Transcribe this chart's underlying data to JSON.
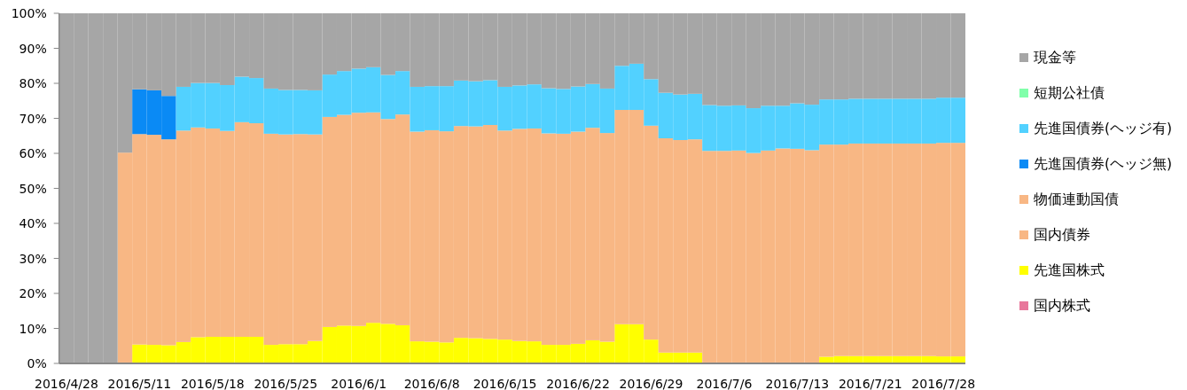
{
  "chart_data": {
    "type": "bar",
    "stacked": true,
    "legend": "right",
    "categories": [
      "2016/4/28",
      null,
      null,
      null,
      null,
      "2016/5/11",
      null,
      null,
      null,
      null,
      "2016/5/18",
      null,
      null,
      null,
      null,
      "2016/5/25",
      null,
      null,
      null,
      null,
      "2016/6/1",
      null,
      null,
      null,
      null,
      "2016/6/8",
      null,
      null,
      null,
      null,
      "2016/6/15",
      null,
      null,
      null,
      null,
      "2016/6/22",
      null,
      null,
      null,
      null,
      "2016/6/29",
      null,
      null,
      null,
      null,
      "2016/7/6",
      null,
      null,
      null,
      null,
      "2016/7/13",
      null,
      null,
      null,
      null,
      "2016/7/21",
      null,
      null,
      null,
      null,
      "2016/7/28",
      null
    ],
    "ylim": [
      0,
      100
    ],
    "yticks": [
      {
        "value": 0,
        "label": "0%"
      },
      {
        "value": 10,
        "label": "10%"
      },
      {
        "value": 20,
        "label": "20%"
      },
      {
        "value": 30,
        "label": "30%"
      },
      {
        "value": 40,
        "label": "40%"
      },
      {
        "value": 50,
        "label": "50%"
      },
      {
        "value": 60,
        "label": "60%"
      },
      {
        "value": 70,
        "label": "70%"
      },
      {
        "value": 80,
        "label": "80%"
      },
      {
        "value": 90,
        "label": "90%"
      },
      {
        "value": 100,
        "label": "100%"
      }
    ],
    "series": [
      {
        "name": "国内株式",
        "color": "#e8779b",
        "values": [
          0,
          0,
          0,
          0,
          0,
          0,
          0,
          0,
          0,
          0,
          0,
          0,
          0,
          0,
          0,
          0,
          0,
          0,
          0,
          0,
          0,
          0,
          0,
          0,
          0,
          0,
          0,
          0,
          0,
          0,
          0,
          0,
          0,
          0,
          0,
          0,
          0,
          0,
          0,
          0,
          0,
          0,
          0,
          0,
          0,
          0,
          0,
          0,
          0,
          0,
          0,
          0,
          0,
          0,
          0,
          0,
          0,
          0,
          0,
          0,
          0,
          0
        ]
      },
      {
        "name": "先進国株式",
        "color": "#ffff00",
        "values": [
          0,
          0,
          0,
          0,
          0,
          5.4,
          5.3,
          5.2,
          6.1,
          7.5,
          7.6,
          7.6,
          7.6,
          7.6,
          5.3,
          5.5,
          5.5,
          6.4,
          10.4,
          10.8,
          10.7,
          11.6,
          11.3,
          10.9,
          6.3,
          6.2,
          6.0,
          7.3,
          7.2,
          7.0,
          6.8,
          6.4,
          6.3,
          5.3,
          5.3,
          5.6,
          6.6,
          6.2,
          11.2,
          11.2,
          6.8,
          3.1,
          3.1,
          3.1,
          0,
          0,
          0,
          0,
          0,
          0,
          0,
          0,
          1.9,
          2.1,
          2.1,
          2.1,
          2.1,
          2.1,
          2.1,
          2.1,
          2.0,
          2.0
        ]
      },
      {
        "name": "国内債券",
        "color": "#f8b784",
        "values": [
          0,
          0,
          0,
          0,
          60.2,
          60.1,
          60.0,
          58.8,
          60.4,
          59.9,
          59.5,
          58.8,
          61.3,
          61.0,
          60.3,
          59.9,
          60.0,
          59.0,
          60.0,
          60.2,
          60.9,
          60.1,
          58.5,
          60.2,
          59.9,
          60.4,
          60.3,
          60.5,
          60.5,
          61.1,
          59.7,
          60.6,
          60.8,
          60.4,
          60.3,
          60.6,
          60.7,
          59.6,
          61.2,
          61.2,
          61.1,
          61.2,
          60.7,
          60.9,
          60.7,
          60.7,
          60.8,
          60.1,
          60.8,
          61.4,
          61.3,
          60.9,
          60.6,
          60.4,
          60.7,
          60.7,
          60.7,
          60.7,
          60.7,
          60.7,
          61.0,
          61.0
        ]
      },
      {
        "name": "物価連動国債",
        "color": "#f8b784",
        "values": [
          0,
          0,
          0,
          0,
          0,
          0,
          0,
          0,
          0,
          0,
          0,
          0,
          0,
          0,
          0,
          0,
          0,
          0,
          0,
          0,
          0,
          0,
          0,
          0,
          0,
          0,
          0,
          0,
          0,
          0,
          0,
          0,
          0,
          0,
          0,
          0,
          0,
          0,
          0,
          0,
          0,
          0,
          0,
          0,
          0,
          0,
          0,
          0,
          0,
          0,
          0,
          0,
          0,
          0,
          0,
          0,
          0,
          0,
          0,
          0,
          0,
          0
        ]
      },
      {
        "name": "先進国債券(ヘッジ無)",
        "color": "#0a8af5",
        "values": [
          0,
          0,
          0,
          0,
          0,
          12.8,
          12.7,
          12.4,
          0,
          0,
          0,
          0,
          0,
          0,
          0,
          0,
          0,
          0,
          0,
          0,
          0,
          0,
          0,
          0,
          0,
          0,
          0,
          0,
          0,
          0,
          0,
          0,
          0,
          0,
          0,
          0,
          0,
          0,
          0,
          0,
          0,
          0,
          0,
          0,
          0,
          0,
          0,
          0,
          0,
          0,
          0,
          0,
          0,
          0,
          0,
          0,
          0,
          0,
          0,
          0,
          0,
          0
        ]
      },
      {
        "name": "先進国債券(ヘッジ有)",
        "color": "#52d1ff",
        "values": [
          0,
          0,
          0,
          0,
          0,
          0,
          0,
          0,
          12.5,
          12.7,
          13.0,
          13.1,
          13.0,
          12.9,
          12.9,
          12.7,
          12.6,
          12.6,
          12.1,
          12.5,
          12.6,
          12.9,
          12.6,
          12.4,
          12.8,
          12.6,
          12.9,
          13.0,
          12.9,
          12.8,
          12.5,
          12.4,
          12.6,
          12.9,
          12.8,
          12.9,
          12.5,
          12.7,
          12.6,
          13.2,
          13.3,
          13.0,
          13.0,
          13.0,
          13.1,
          12.9,
          12.9,
          12.8,
          12.8,
          12.2,
          13.0,
          13.0,
          12.9,
          12.9,
          12.8,
          12.8,
          12.8,
          12.8,
          12.8,
          12.8,
          12.9,
          12.9
        ]
      },
      {
        "name": "短期公社債",
        "color": "#80ffaa",
        "values": [
          0,
          0,
          0,
          0,
          0,
          0,
          0,
          0,
          0,
          0,
          0,
          0,
          0,
          0,
          0,
          0,
          0,
          0,
          0,
          0,
          0,
          0,
          0,
          0,
          0,
          0,
          0,
          0,
          0,
          0,
          0,
          0,
          0,
          0,
          0,
          0,
          0,
          0,
          0,
          0,
          0,
          0,
          0,
          0,
          0,
          0,
          0,
          0,
          0,
          0,
          0,
          0,
          0,
          0,
          0,
          0,
          0,
          0,
          0,
          0,
          0,
          0
        ]
      },
      {
        "name": "現金等",
        "color": "#a6a6a6",
        "values": [
          100,
          100,
          100,
          100,
          39.8,
          21.7,
          22.0,
          23.6,
          21.0,
          19.9,
          19.9,
          20.5,
          18.1,
          18.5,
          21.5,
          21.9,
          21.9,
          22.0,
          17.5,
          16.5,
          15.8,
          15.4,
          17.6,
          16.5,
          21.0,
          20.8,
          20.8,
          19.2,
          19.4,
          19.1,
          21.0,
          20.6,
          20.3,
          21.4,
          21.6,
          20.9,
          20.2,
          21.5,
          15.0,
          14.4,
          18.8,
          22.7,
          23.2,
          23.0,
          26.2,
          26.4,
          26.3,
          27.1,
          26.4,
          26.4,
          25.7,
          26.1,
          24.6,
          24.6,
          24.4,
          24.4,
          24.4,
          24.4,
          24.4,
          24.4,
          24.1,
          24.1
        ]
      }
    ]
  }
}
